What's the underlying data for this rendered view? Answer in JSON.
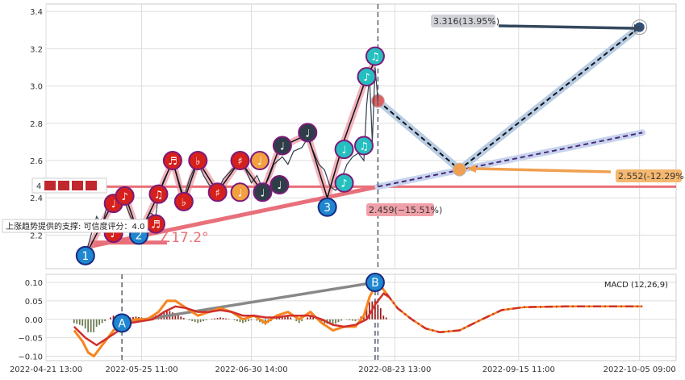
{
  "chart_data": [
    {
      "type": "line",
      "panel": "price",
      "ylim": [
        2.02,
        3.44
      ],
      "xlim": [
        0,
        224
      ],
      "yticks": [
        2.2,
        2.4,
        2.6,
        2.8,
        3.0,
        3.2,
        3.4
      ],
      "ytick_labels": [
        "2.2",
        "2.4",
        "2.6",
        "2.8",
        "3.0",
        "3.2",
        "3.4"
      ],
      "xticks": [
        0,
        34,
        73,
        124,
        168,
        211
      ],
      "xtick_labels": [
        "2022-04-21 13:00",
        "2022-05-25 11:00",
        "2022-06-30 14:00",
        "2022-08-23 13:00",
        "2022-09-15 11:00",
        "2022-10-05 09:00"
      ],
      "grid": true,
      "price": [
        [
          14,
          2.09
        ],
        [
          16,
          2.2
        ],
        [
          18,
          2.3
        ],
        [
          20,
          2.25
        ],
        [
          22,
          2.38
        ],
        [
          24,
          2.36
        ],
        [
          26,
          2.42
        ],
        [
          28,
          2.38
        ],
        [
          30,
          2.3
        ],
        [
          32,
          2.25
        ],
        [
          33,
          2.2
        ],
        [
          35,
          2.26
        ],
        [
          37,
          2.32
        ],
        [
          39,
          2.3
        ],
        [
          40,
          2.42
        ],
        [
          42,
          2.5
        ],
        [
          44,
          2.56
        ],
        [
          45,
          2.6
        ],
        [
          47,
          2.5
        ],
        [
          49,
          2.4
        ],
        [
          51,
          2.5
        ],
        [
          53,
          2.57
        ],
        [
          54,
          2.6
        ],
        [
          56,
          2.52
        ],
        [
          58,
          2.47
        ],
        [
          61,
          2.43
        ],
        [
          63,
          2.5
        ],
        [
          66,
          2.55
        ],
        [
          69,
          2.6
        ],
        [
          71,
          2.55
        ],
        [
          73,
          2.48
        ],
        [
          75,
          2.52
        ],
        [
          77,
          2.45
        ],
        [
          79,
          2.5
        ],
        [
          81,
          2.58
        ],
        [
          84,
          2.62
        ],
        [
          86,
          2.58
        ],
        [
          88,
          2.65
        ],
        [
          91,
          2.67
        ],
        [
          93,
          2.72
        ],
        [
          95,
          2.65
        ],
        [
          97,
          2.58
        ],
        [
          99,
          2.55
        ],
        [
          101,
          2.46
        ],
        [
          103,
          2.44
        ],
        [
          105,
          2.5
        ],
        [
          107,
          2.58
        ],
        [
          109,
          2.62
        ],
        [
          111,
          2.64
        ],
        [
          113,
          2.6
        ],
        [
          114,
          2.9
        ],
        [
          115,
          3.05
        ],
        [
          116,
          2.7
        ],
        [
          117,
          3.1
        ],
        [
          118,
          2.92
        ]
      ],
      "zigzag": [
        [
          14,
          2.09
        ],
        [
          24,
          2.38
        ],
        [
          28,
          2.42
        ],
        [
          33,
          2.2
        ],
        [
          40,
          2.42
        ],
        [
          45,
          2.6
        ],
        [
          49,
          2.38
        ],
        [
          54,
          2.6
        ],
        [
          61,
          2.43
        ],
        [
          69,
          2.6
        ],
        [
          77,
          2.43
        ],
        [
          83,
          2.67
        ],
        [
          93,
          2.74
        ],
        [
          100,
          2.4
        ],
        [
          106,
          2.71
        ],
        [
          114,
          3.05
        ],
        [
          118,
          3.16
        ]
      ],
      "markers": [
        {
          "x": 14,
          "y": 2.09,
          "label": "1",
          "kind": "wave"
        },
        {
          "x": 24,
          "y": 2.21,
          "label": "♪",
          "kind": "up"
        },
        {
          "x": 24,
          "y": 2.37,
          "label": "♩",
          "kind": "up"
        },
        {
          "x": 28,
          "y": 2.41,
          "label": "♪",
          "kind": "up"
        },
        {
          "x": 33,
          "y": 2.2,
          "label": "2",
          "kind": "wave"
        },
        {
          "x": 39,
          "y": 2.26,
          "label": "♬",
          "kind": "up"
        },
        {
          "x": 40,
          "y": 2.42,
          "label": "♫",
          "kind": "up"
        },
        {
          "x": 45,
          "y": 2.6,
          "label": "♬",
          "kind": "up"
        },
        {
          "x": 49,
          "y": 2.38,
          "label": "♭",
          "kind": "up"
        },
        {
          "x": 54,
          "y": 2.6,
          "label": "♭",
          "kind": "up"
        },
        {
          "x": 61,
          "y": 2.43,
          "label": "♯",
          "kind": "up"
        },
        {
          "x": 69,
          "y": 2.6,
          "label": "♯",
          "kind": "up"
        },
        {
          "x": 69,
          "y": 2.43,
          "label": "♩",
          "kind": "warn"
        },
        {
          "x": 76,
          "y": 2.6,
          "label": "♩",
          "kind": "warn"
        },
        {
          "x": 77,
          "y": 2.43,
          "label": "♩",
          "kind": "dark"
        },
        {
          "x": 83,
          "y": 2.47,
          "label": "♩",
          "kind": "dark"
        },
        {
          "x": 84,
          "y": 2.68,
          "label": "♩",
          "kind": "dark"
        },
        {
          "x": 93,
          "y": 2.75,
          "label": "♩",
          "kind": "dark"
        },
        {
          "x": 100,
          "y": 2.35,
          "label": "3",
          "kind": "wave"
        },
        {
          "x": 106,
          "y": 2.48,
          "label": "♪",
          "kind": "teal"
        },
        {
          "x": 106,
          "y": 2.66,
          "label": "♩",
          "kind": "teal"
        },
        {
          "x": 113,
          "y": 2.68,
          "label": "♫",
          "kind": "teal"
        },
        {
          "x": 114,
          "y": 3.05,
          "label": "♪",
          "kind": "teal"
        },
        {
          "x": 117,
          "y": 3.16,
          "label": "♫",
          "kind": "teal"
        }
      ],
      "support_line": {
        "from": [
          16,
          2.14
        ],
        "to": [
          118,
          2.46
        ]
      },
      "support_base": {
        "from": [
          16,
          2.16
        ],
        "to": [
          43,
          2.16
        ]
      },
      "resistance_level": 2.46,
      "angle_label": "∠17.2°",
      "forecast": {
        "start": [
          118,
          2.92
        ],
        "mid": [
          147,
          2.552
        ],
        "end": [
          211,
          3.316
        ]
      },
      "trend_dash": {
        "from": [
          118,
          2.46
        ],
        "to": [
          212,
          2.75
        ]
      },
      "annotations": [
        {
          "text": "3.316(13.95%)",
          "kind": "high"
        },
        {
          "text": "2.552(-12.29%)",
          "kind": "mid"
        },
        {
          "text": "2.459(−15.51%)",
          "kind": "low"
        }
      ],
      "support_note": "上涨趋势提供的支撑: 可信度评分：4.0",
      "legend_score": "4",
      "vline_x": 118
    },
    {
      "type": "line",
      "panel": "macd",
      "title": "MACD (12,26,9)",
      "ylim": [
        -0.112,
        0.122
      ],
      "yticks": [
        -0.1,
        -0.05,
        0.0,
        0.05,
        0.1
      ],
      "ytick_labels": [
        "−0.10",
        "−0.05",
        "0.00",
        "0.05",
        "0.10"
      ],
      "macd": [
        [
          10,
          -0.03
        ],
        [
          13,
          -0.06
        ],
        [
          15,
          -0.09
        ],
        [
          17,
          -0.1
        ],
        [
          20,
          -0.07
        ],
        [
          24,
          -0.03
        ],
        [
          28,
          -0.01
        ],
        [
          32,
          0.0
        ],
        [
          36,
          0.0
        ],
        [
          40,
          0.02
        ],
        [
          43,
          0.05
        ],
        [
          46,
          0.05
        ],
        [
          50,
          0.03
        ],
        [
          54,
          0.01
        ],
        [
          58,
          0.02
        ],
        [
          62,
          0.03
        ],
        [
          66,
          0.02
        ],
        [
          70,
          0.0
        ],
        [
          74,
          0.01
        ],
        [
          78,
          -0.01
        ],
        [
          82,
          0.01
        ],
        [
          86,
          0.02
        ],
        [
          90,
          0.0
        ],
        [
          94,
          0.02
        ],
        [
          98,
          -0.01
        ],
        [
          102,
          -0.03
        ],
        [
          106,
          -0.02
        ],
        [
          110,
          -0.02
        ],
        [
          113,
          0.01
        ],
        [
          115,
          0.06
        ],
        [
          117,
          0.09
        ],
        [
          119,
          0.09
        ],
        [
          121,
          0.07
        ]
      ],
      "signal": [
        [
          10,
          -0.02
        ],
        [
          14,
          -0.05
        ],
        [
          18,
          -0.07
        ],
        [
          22,
          -0.05
        ],
        [
          26,
          -0.03
        ],
        [
          30,
          -0.01
        ],
        [
          34,
          -0.005
        ],
        [
          38,
          0.0
        ],
        [
          42,
          0.02
        ],
        [
          46,
          0.035
        ],
        [
          50,
          0.03
        ],
        [
          54,
          0.02
        ],
        [
          58,
          0.02
        ],
        [
          62,
          0.025
        ],
        [
          66,
          0.02
        ],
        [
          70,
          0.01
        ],
        [
          74,
          0.01
        ],
        [
          78,
          0.005
        ],
        [
          82,
          0.005
        ],
        [
          86,
          0.01
        ],
        [
          90,
          0.01
        ],
        [
          94,
          0.01
        ],
        [
          98,
          0.0
        ],
        [
          102,
          -0.015
        ],
        [
          106,
          -0.02
        ],
        [
          110,
          -0.015
        ],
        [
          114,
          0.0
        ],
        [
          117,
          0.04
        ],
        [
          120,
          0.07
        ],
        [
          122,
          0.06
        ]
      ],
      "forecast": [
        [
          121,
          0.07
        ],
        [
          125,
          0.03
        ],
        [
          130,
          0.0
        ],
        [
          135,
          -0.025
        ],
        [
          140,
          -0.035
        ],
        [
          147,
          -0.03
        ],
        [
          155,
          0.0
        ],
        [
          162,
          0.025
        ],
        [
          170,
          0.033
        ],
        [
          185,
          0.035
        ],
        [
          212,
          0.035
        ]
      ],
      "points": [
        {
          "label": "A",
          "x": 27,
          "y": -0.01
        },
        {
          "label": "B",
          "x": 117,
          "y": 0.1
        }
      ],
      "vlines": [
        27,
        117,
        118
      ]
    }
  ]
}
